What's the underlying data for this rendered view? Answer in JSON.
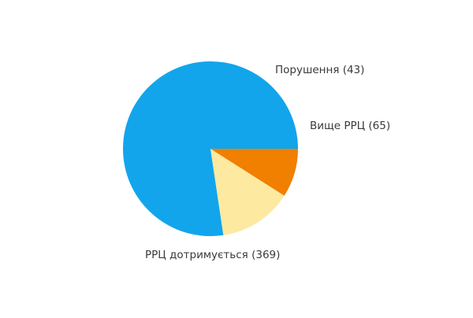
{
  "chart_data": {
    "type": "pie",
    "start_angle_deg": 0,
    "direction": "counterclockwise",
    "slices": [
      {
        "label": "РРЦ дотримується",
        "value": 369,
        "display": "РРЦ дотримується (369)",
        "color": "#12a5eb"
      },
      {
        "label": "Вище РРЦ",
        "value": 65,
        "display": "Вище РРЦ (65)",
        "color": "#fde9a0"
      },
      {
        "label": "Порушення",
        "value": 43,
        "display": "Порушення (43)",
        "color": "#f17f00"
      }
    ]
  }
}
